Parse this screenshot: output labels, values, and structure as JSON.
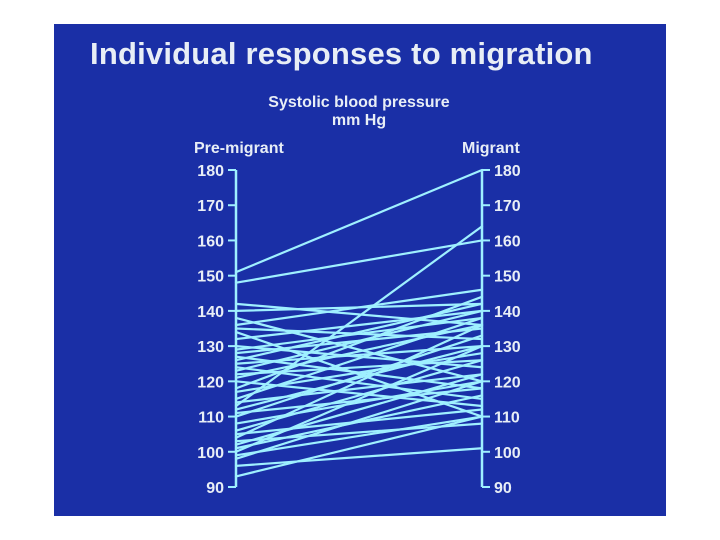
{
  "slide": {
    "title": "Individual responses to migration",
    "subtitle_line1": "Systolic blood pressure",
    "subtitle_line2": "mm Hg",
    "background_color": "#1a2fa6",
    "line_color": "#9ff0ff"
  },
  "chart_data": {
    "type": "line",
    "title": "Individual responses to migration",
    "subtitle": "Systolic blood pressure mm Hg",
    "x": [
      "Pre-migrant",
      "Migrant"
    ],
    "ylim": [
      90,
      180
    ],
    "y_ticks": [
      180,
      170,
      160,
      150,
      140,
      130,
      120,
      110,
      100,
      90
    ],
    "grid": false,
    "series": [
      {
        "values": [
          151,
          180
        ]
      },
      {
        "values": [
          148,
          160
        ]
      },
      {
        "values": [
          142,
          136
        ]
      },
      {
        "values": [
          140,
          142
        ]
      },
      {
        "values": [
          138,
          120
        ]
      },
      {
        "values": [
          136,
          146
        ]
      },
      {
        "values": [
          135,
          132
        ]
      },
      {
        "values": [
          134,
          110
        ]
      },
      {
        "values": [
          132,
          140
        ]
      },
      {
        "values": [
          130,
          124
        ]
      },
      {
        "values": [
          129,
          138
        ]
      },
      {
        "values": [
          128,
          135
        ]
      },
      {
        "values": [
          127,
          118
        ]
      },
      {
        "values": [
          126,
          142
        ]
      },
      {
        "values": [
          125,
          130
        ]
      },
      {
        "values": [
          124,
          115
        ]
      },
      {
        "values": [
          123,
          140
        ]
      },
      {
        "values": [
          122,
          126
        ]
      },
      {
        "values": [
          121,
          136
        ]
      },
      {
        "values": [
          120,
          113
        ]
      },
      {
        "values": [
          118,
          144
        ]
      },
      {
        "values": [
          117,
          128
        ]
      },
      {
        "values": [
          115,
          138
        ]
      },
      {
        "values": [
          114,
          122
        ]
      },
      {
        "values": [
          113,
          164
        ]
      },
      {
        "values": [
          112,
          130
        ]
      },
      {
        "values": [
          111,
          118
        ]
      },
      {
        "values": [
          110,
          133
        ]
      },
      {
        "values": [
          108,
          120
        ]
      },
      {
        "values": [
          106,
          126
        ]
      },
      {
        "values": [
          105,
          112
        ]
      },
      {
        "values": [
          104,
          136
        ]
      },
      {
        "values": [
          103,
          108
        ]
      },
      {
        "values": [
          102,
          122
        ]
      },
      {
        "values": [
          101,
          116
        ]
      },
      {
        "values": [
          100,
          130
        ]
      },
      {
        "values": [
          99,
          110
        ]
      },
      {
        "values": [
          98,
          120
        ]
      },
      {
        "values": [
          96,
          101
        ]
      },
      {
        "values": [
          93,
          110
        ]
      }
    ],
    "axes": [
      {
        "label": "Pre-migrant",
        "position": "left"
      },
      {
        "label": "Migrant",
        "position": "right"
      }
    ]
  }
}
